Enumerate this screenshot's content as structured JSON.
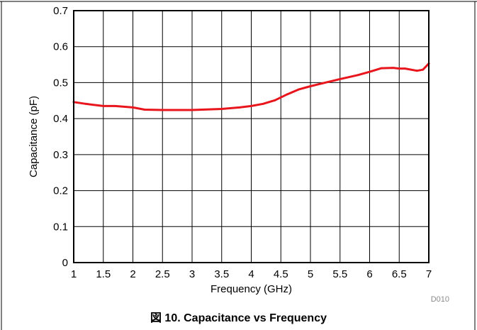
{
  "figure_code": "D010",
  "caption": "図 10. Capacitance vs Frequency",
  "colors": {
    "series": "#e8161c",
    "grid": "#000000",
    "frame_rule": "#000000"
  },
  "chart_data": {
    "type": "line",
    "title": "",
    "xlabel": "Frequency (GHz)",
    "ylabel": "Capacitance (pF)",
    "xlim": [
      1,
      7
    ],
    "ylim": [
      0,
      0.7
    ],
    "grid": true,
    "xticks": [
      "1",
      "1.5",
      "2",
      "2.5",
      "3",
      "3.5",
      "4",
      "4.5",
      "5",
      "5.5",
      "6",
      "6.5",
      "7"
    ],
    "yticks": [
      "0",
      "0.1",
      "0.2",
      "0.3",
      "0.4",
      "0.5",
      "0.6",
      "0.7"
    ],
    "series": [
      {
        "color": "#e8161c",
        "x": [
          1.0,
          1.2,
          1.5,
          1.7,
          2.0,
          2.2,
          2.5,
          3.0,
          3.5,
          3.8,
          4.0,
          4.2,
          4.4,
          4.6,
          4.8,
          5.0,
          5.2,
          5.5,
          5.8,
          6.0,
          6.2,
          6.4,
          6.5,
          6.6,
          6.8,
          6.9,
          7.0
        ],
        "y": [
          0.446,
          0.441,
          0.435,
          0.435,
          0.431,
          0.425,
          0.424,
          0.424,
          0.427,
          0.431,
          0.435,
          0.441,
          0.451,
          0.467,
          0.481,
          0.49,
          0.498,
          0.51,
          0.521,
          0.53,
          0.54,
          0.541,
          0.539,
          0.539,
          0.533,
          0.536,
          0.553
        ]
      }
    ]
  }
}
